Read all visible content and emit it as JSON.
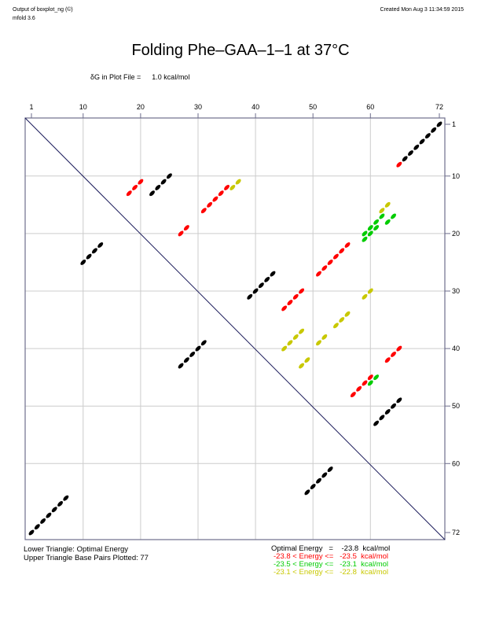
{
  "header": {
    "program": "Output of boxplot_ng (©)",
    "version": "mfold 3.6",
    "created": "Created Mon Aug  3 11:34:59 2015"
  },
  "title": "Folding Phe–GAA–1–1 at 37°C",
  "delta_g": {
    "label": "δG in Plot File =",
    "value": "1.0 kcal/mol"
  },
  "legend": {
    "lower": "Lower Triangle: Optimal Energy",
    "upper": "Upper Triangle Base Pairs Plotted: 77",
    "optimal": "Optimal Energy   =    -23.8  kcal/mol",
    "ranges": [
      {
        "text": "-23.8 < Energy <=   -23.5  kcal/mol",
        "color": "#ff0000"
      },
      {
        "text": "-23.5 < Energy <=   -23.1  kcal/mol",
        "color": "#00cc00"
      },
      {
        "text": "-23.1 < Energy <=   -22.8  kcal/mol",
        "color": "#c8c800"
      }
    ]
  },
  "colors": {
    "black": "#000000",
    "red": "#ff0000",
    "green": "#00cc00",
    "yellow": "#c8c800",
    "frame": "#6e6e8c",
    "grid": "#cccccc",
    "diagonal": "#1a1a5a"
  },
  "chart_data": {
    "type": "scatter",
    "title": "Folding Phe-GAA-1-1 at 37°C",
    "xlabel": "",
    "ylabel": "",
    "x_ticks": [
      1,
      10,
      20,
      30,
      40,
      50,
      60,
      72
    ],
    "y_ticks": [
      1,
      10,
      20,
      30,
      40,
      50,
      60,
      72
    ],
    "xlim": [
      1,
      72
    ],
    "ylim": [
      1,
      72
    ],
    "grid": true,
    "description": "Energy dot plot; upper triangle shows base pairs (i,j) colored by energy; lower triangle shows the optimal structure (mirrored).",
    "series": [
      {
        "name": "Optimal Energy = -23.8 kcal/mol",
        "color": "black",
        "pairs": [
          [
            1,
            72
          ],
          [
            2,
            71
          ],
          [
            3,
            70
          ],
          [
            4,
            69
          ],
          [
            5,
            68
          ],
          [
            6,
            67
          ],
          [
            7,
            66
          ],
          [
            10,
            25
          ],
          [
            11,
            24
          ],
          [
            12,
            23
          ],
          [
            13,
            22
          ],
          [
            27,
            43
          ],
          [
            28,
            42
          ],
          [
            29,
            41
          ],
          [
            30,
            40
          ],
          [
            31,
            39
          ],
          [
            49,
            65
          ],
          [
            50,
            64
          ],
          [
            51,
            63
          ],
          [
            52,
            62
          ],
          [
            53,
            61
          ]
        ]
      },
      {
        "name": "-23.8 < Energy <= -23.5 kcal/mol",
        "color": "red",
        "pairs": [
          [
            8,
            65
          ],
          [
            11,
            20
          ],
          [
            12,
            19
          ],
          [
            13,
            18
          ],
          [
            12,
            35
          ],
          [
            13,
            34
          ],
          [
            14,
            33
          ],
          [
            15,
            32
          ],
          [
            16,
            31
          ],
          [
            19,
            28
          ],
          [
            20,
            27
          ],
          [
            22,
            56
          ],
          [
            23,
            55
          ],
          [
            24,
            54
          ],
          [
            25,
            53
          ],
          [
            26,
            52
          ],
          [
            27,
            51
          ],
          [
            30,
            48
          ],
          [
            31,
            47
          ],
          [
            32,
            46
          ],
          [
            33,
            45
          ],
          [
            40,
            65
          ],
          [
            41,
            64
          ],
          [
            42,
            63
          ],
          [
            45,
            60
          ],
          [
            46,
            59
          ],
          [
            47,
            58
          ],
          [
            48,
            57
          ]
        ]
      },
      {
        "name": "-23.5 < Energy <= -23.1 kcal/mol",
        "color": "green",
        "pairs": [
          [
            17,
            62
          ],
          [
            18,
            61
          ],
          [
            19,
            60
          ],
          [
            20,
            59
          ],
          [
            21,
            59
          ],
          [
            19,
            61
          ],
          [
            20,
            60
          ],
          [
            17,
            64
          ],
          [
            18,
            63
          ],
          [
            45,
            61
          ],
          [
            46,
            60
          ]
        ]
      },
      {
        "name": "-23.1 < Energy <= -22.8 kcal/mol",
        "color": "yellow",
        "pairs": [
          [
            11,
            37
          ],
          [
            12,
            36
          ],
          [
            15,
            63
          ],
          [
            16,
            62
          ],
          [
            30,
            60
          ],
          [
            31,
            59
          ],
          [
            34,
            56
          ],
          [
            35,
            55
          ],
          [
            36,
            54
          ],
          [
            37,
            48
          ],
          [
            38,
            47
          ],
          [
            39,
            46
          ],
          [
            40,
            45
          ],
          [
            38,
            52
          ],
          [
            39,
            51
          ],
          [
            42,
            49
          ],
          [
            43,
            48
          ]
        ]
      }
    ],
    "lower_triangle": "Optimal Energy (mirror of black pairs)"
  }
}
